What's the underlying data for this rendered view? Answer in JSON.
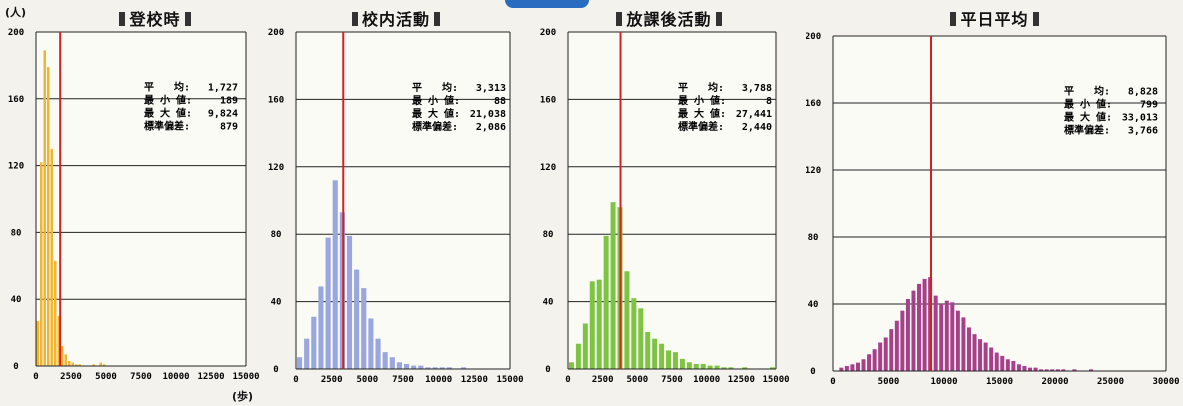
{
  "y_unit": "(人)",
  "x_unit": "(歩)",
  "chart_data": [
    {
      "type": "bar",
      "title": "登校時",
      "color": "#f2b533",
      "xlim": [
        0,
        15000
      ],
      "ylim": [
        0,
        200
      ],
      "x_ticks": [
        "0",
        "2500",
        "5000",
        "7500",
        "10000",
        "12500",
        "15000"
      ],
      "y_ticks": [
        "0",
        "40",
        "80",
        "120",
        "160",
        "200"
      ],
      "bin_width": 250,
      "values": [
        27,
        122,
        189,
        179,
        130,
        63,
        30,
        12,
        7,
        3,
        2,
        1,
        1,
        0,
        0,
        0,
        1,
        0,
        2,
        1,
        0,
        0,
        0,
        0,
        0,
        0,
        0,
        0,
        0,
        0,
        0,
        0,
        0,
        0,
        0,
        0,
        0,
        0,
        0,
        0
      ],
      "mean_line": 1727,
      "stats": [
        {
          "label": "平　　均",
          "value": "1,727"
        },
        {
          "label": "最 小 値",
          "value": "189"
        },
        {
          "label": "最 大 値",
          "value": "9,824"
        },
        {
          "label": "標準偏差",
          "value": "879"
        }
      ]
    },
    {
      "type": "bar",
      "title": "校内活動",
      "color": "#9aa6de",
      "xlim": [
        0,
        15000
      ],
      "ylim": [
        0,
        200
      ],
      "x_ticks": [
        "0",
        "2500",
        "5000",
        "7500",
        "10000",
        "12500",
        "15000"
      ],
      "y_ticks": [
        "0",
        "40",
        "80",
        "120",
        "160",
        "200"
      ],
      "bin_width": 500,
      "values": [
        7,
        18,
        31,
        49,
        78,
        112,
        93,
        79,
        59,
        48,
        30,
        18,
        10,
        7,
        4,
        3,
        2,
        2,
        1,
        1,
        1,
        1,
        0,
        1,
        0,
        0,
        0,
        0,
        0,
        0
      ],
      "mean_line": 3313,
      "stats": [
        {
          "label": "平　　均",
          "value": "3,313"
        },
        {
          "label": "最 小 値",
          "value": "88"
        },
        {
          "label": "最 大 値",
          "value": "21,038"
        },
        {
          "label": "標準偏差",
          "value": "2,086"
        }
      ]
    },
    {
      "type": "bar",
      "title": "放課後活動",
      "color": "#7dc443",
      "xlim": [
        0,
        15000
      ],
      "ylim": [
        0,
        200
      ],
      "x_ticks": [
        "0",
        "2500",
        "5000",
        "7500",
        "10000",
        "12500",
        "15000"
      ],
      "y_ticks": [
        "0",
        "40",
        "80",
        "120",
        "160",
        "200"
      ],
      "bin_width": 500,
      "values": [
        4,
        15,
        27,
        52,
        53,
        79,
        99,
        96,
        58,
        42,
        36,
        22,
        18,
        15,
        11,
        10,
        6,
        4,
        3,
        3,
        2,
        2,
        1,
        1,
        0,
        1,
        0,
        0,
        0,
        1
      ],
      "mean_line": 3788,
      "stats": [
        {
          "label": "平　　均",
          "value": "3,788"
        },
        {
          "label": "最 小 値",
          "value": "8"
        },
        {
          "label": "最 大 値",
          "value": "27,441"
        },
        {
          "label": "標準偏差",
          "value": "2,440"
        }
      ]
    },
    {
      "type": "bar",
      "title": "平日平均",
      "color": "#a6408a",
      "xlim": [
        0,
        30000
      ],
      "ylim": [
        0,
        200
      ],
      "x_ticks": [
        "0",
        "5000",
        "10000",
        "15000",
        "20000",
        "25000",
        "30000"
      ],
      "y_ticks": [
        "0",
        "40",
        "80",
        "120",
        "160",
        "200"
      ],
      "bin_width": 500,
      "values": [
        0,
        2,
        3,
        4,
        5,
        7,
        10,
        13,
        17,
        20,
        25,
        30,
        36,
        43,
        48,
        52,
        55,
        56,
        45,
        40,
        42,
        41,
        36,
        32,
        26,
        22,
        19,
        17,
        14,
        11,
        9,
        7,
        6,
        4,
        3,
        2,
        2,
        1,
        1,
        1,
        1,
        1,
        0,
        1,
        0,
        0,
        1,
        0,
        0,
        0,
        0,
        0,
        0,
        0,
        0,
        0,
        0,
        0,
        0,
        0
      ],
      "mean_line": 8828,
      "stats": [
        {
          "label": "平　　均",
          "value": "8,828"
        },
        {
          "label": "最 小 値",
          "value": "799"
        },
        {
          "label": "最 大 値",
          "value": "33,013"
        },
        {
          "label": "標準偏差",
          "value": "3,766"
        }
      ]
    }
  ]
}
